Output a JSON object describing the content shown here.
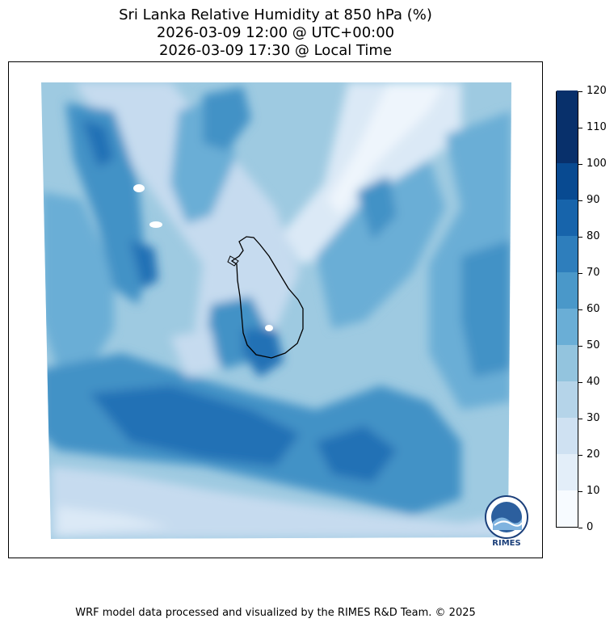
{
  "title": {
    "line1": "Sri Lanka Relative Humidity at 850 hPa (%)",
    "line2": "2026-03-09 12:00 @ UTC+00:00",
    "line3": "2026-03-09 17:30 @ Local Time"
  },
  "colorbar": {
    "ticks": [
      "0",
      "10",
      "20",
      "30",
      "40",
      "50",
      "60",
      "70",
      "80",
      "90",
      "100",
      "110",
      "120"
    ],
    "colors": [
      "#f7fbff",
      "#e3eef9",
      "#cfe1f2",
      "#b5d4e9",
      "#93c4de",
      "#6aaed6",
      "#4a98c9",
      "#2e7ebc",
      "#1764ab",
      "#084a91",
      "#08306b",
      "#08306b"
    ]
  },
  "legend_mode": "filled-contour",
  "logo": {
    "text": "RIMES"
  },
  "footer": "WRF model data processed and visualized by the RIMES R&D Team. © 2025"
}
